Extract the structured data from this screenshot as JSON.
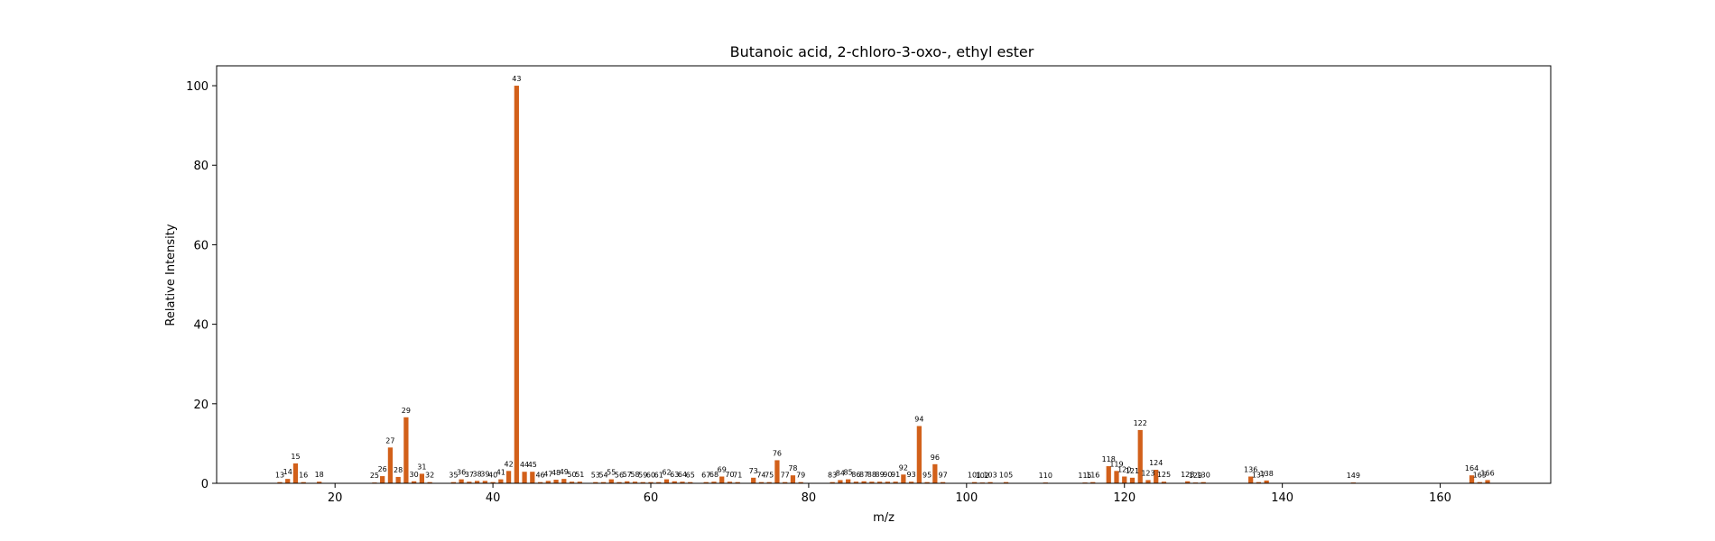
{
  "chart_data": {
    "type": "bar",
    "title": "Butanoic acid, 2-chloro-3-oxo-, ethyl ester",
    "xlabel": "m/z",
    "ylabel": "Relative Intensity",
    "xlim": [
      5,
      174
    ],
    "ylim": [
      0,
      105
    ],
    "x_ticks": [
      20,
      40,
      60,
      80,
      100,
      120,
      140,
      160
    ],
    "y_ticks": [
      0,
      20,
      40,
      60,
      80,
      100
    ],
    "bar_color": "#d2601a",
    "grid": false,
    "series": [
      {
        "x": [
          13,
          14,
          15,
          16,
          18,
          25,
          26,
          27,
          28,
          29,
          30,
          31,
          32,
          35,
          36,
          37,
          38,
          39,
          40,
          41,
          42,
          43,
          44,
          45,
          46,
          47,
          48,
          49,
          50,
          51,
          53,
          54,
          55,
          56,
          57,
          58,
          59,
          60,
          61,
          62,
          63,
          64,
          65,
          67,
          68,
          69,
          70,
          71,
          73,
          74,
          75,
          76,
          77,
          78,
          79,
          83,
          84,
          85,
          86,
          87,
          88,
          89,
          90,
          91,
          92,
          93,
          94,
          95,
          96,
          97,
          101,
          102,
          103,
          105,
          110,
          115,
          116,
          118,
          119,
          120,
          121,
          122,
          123,
          124,
          125,
          128,
          129,
          130,
          136,
          137,
          138,
          149,
          164,
          165,
          166
        ],
        "values": [
          0.3,
          1.1,
          5.0,
          0.3,
          0.4,
          0.2,
          1.8,
          9.0,
          1.6,
          16.6,
          0.5,
          2.4,
          0.3,
          0.3,
          1.0,
          0.4,
          0.6,
          0.6,
          0.3,
          1.0,
          3.1,
          100,
          2.9,
          2.9,
          0.3,
          0.6,
          0.9,
          1.1,
          0.4,
          0.4,
          0.3,
          0.3,
          1.0,
          0.3,
          0.5,
          0.4,
          0.3,
          0.3,
          0.3,
          1.0,
          0.5,
          0.4,
          0.3,
          0.3,
          0.4,
          1.7,
          0.4,
          0.3,
          1.4,
          0.3,
          0.3,
          5.8,
          0.3,
          2.0,
          0.3,
          0.3,
          0.8,
          1.0,
          0.4,
          0.5,
          0.4,
          0.4,
          0.4,
          0.4,
          2.2,
          0.4,
          14.4,
          0.3,
          4.8,
          0.3,
          0.3,
          0.2,
          0.3,
          0.3,
          0.2,
          0.2,
          0.3,
          4.3,
          3.1,
          1.7,
          1.4,
          13.4,
          0.8,
          3.4,
          0.4,
          0.5,
          0.2,
          0.3,
          1.7,
          0.3,
          0.7,
          0.2,
          2.0,
          0.3,
          0.8
        ],
        "labels": [
          "13",
          "14",
          "15",
          "16",
          "18",
          "25",
          "26",
          "27",
          "28",
          "29",
          "30",
          "31",
          "32",
          "35",
          "36",
          "37",
          "38",
          "39",
          "40",
          "41",
          "42",
          "43",
          "44",
          "45",
          "46",
          "47",
          "48",
          "49",
          "50",
          "51",
          "53",
          "54",
          "55",
          "56",
          "57",
          "58",
          "59",
          "60",
          "61",
          "62",
          "63",
          "64",
          "65",
          "67",
          "68",
          "69",
          "70",
          "71",
          "73",
          "74",
          "75",
          "76",
          "77",
          "78",
          "79",
          "83",
          "84",
          "85",
          "86",
          "87",
          "88",
          "89",
          "90",
          "91",
          "92",
          "93",
          "94",
          "95",
          "96",
          "97",
          "101",
          "102",
          "103",
          "105",
          "110",
          "115",
          "116",
          "118",
          "119",
          "120",
          "121",
          "122",
          "123",
          "124",
          "125",
          "128",
          "129",
          "130",
          "136",
          "137",
          "138",
          "149",
          "164",
          "165",
          "166"
        ]
      }
    ]
  }
}
